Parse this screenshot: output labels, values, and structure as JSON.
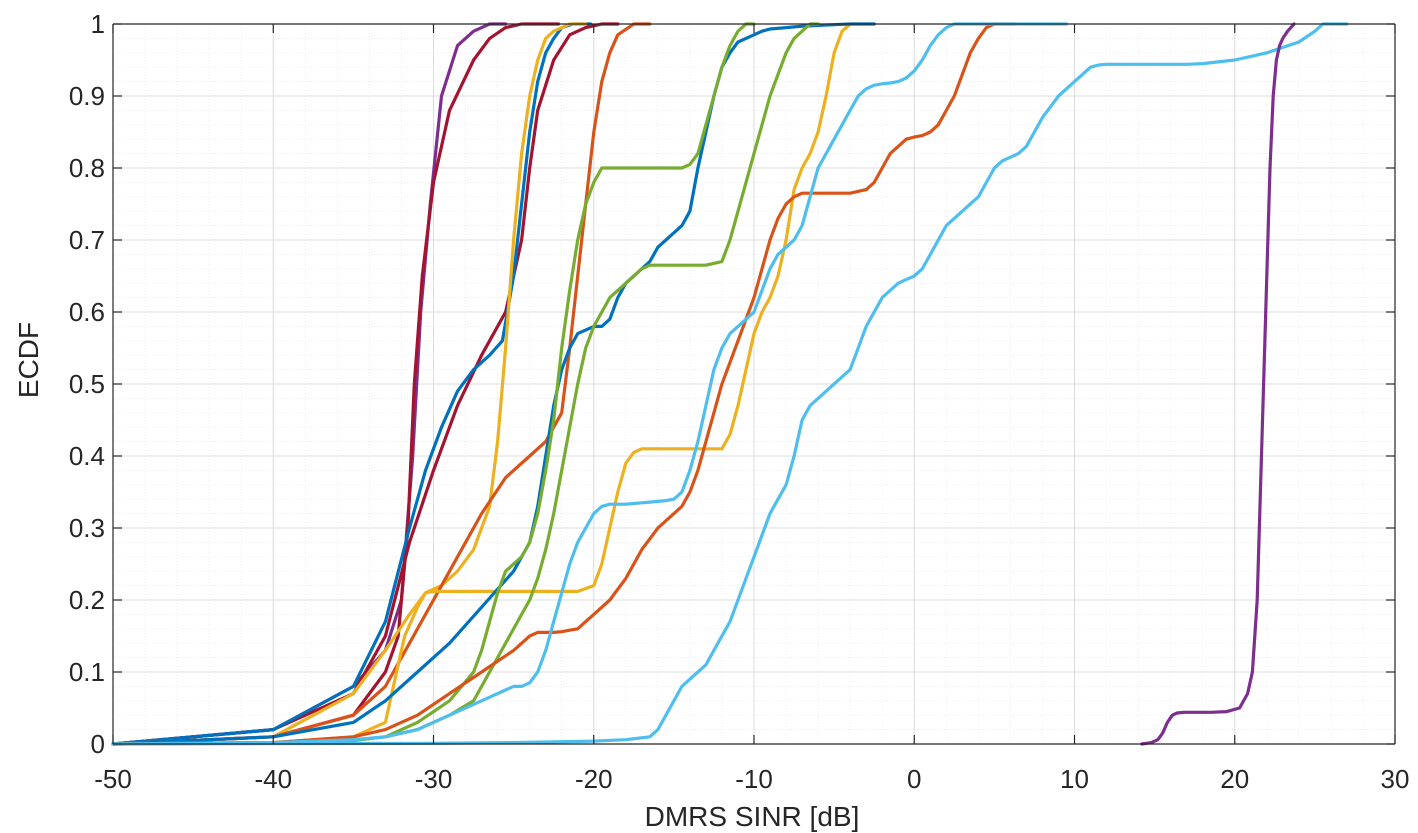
{
  "chart_data": {
    "type": "line",
    "title": "",
    "xlabel": "DMRS SINR [dB]",
    "ylabel": "ECDF",
    "xlim": [
      -50,
      30
    ],
    "ylim": [
      0,
      1
    ],
    "xticks": [
      -50,
      -40,
      -30,
      -20,
      -10,
      0,
      10,
      20,
      30
    ],
    "yticks": [
      0,
      0.1,
      0.2,
      0.3,
      0.4,
      0.5,
      0.6,
      0.7,
      0.8,
      0.9,
      1
    ],
    "xtick_labels": [
      "-50",
      "-40",
      "-30",
      "-20",
      "-10",
      "0",
      "10",
      "20",
      "30"
    ],
    "ytick_labels": [
      "0",
      "0.1",
      "0.2",
      "0.3",
      "0.4",
      "0.5",
      "0.6",
      "0.7",
      "0.8",
      "0.9",
      "1"
    ],
    "grid": true,
    "minor_grid": true,
    "legend": "none",
    "series": [
      {
        "color": "#7E2F8E",
        "x": [
          -50,
          -40,
          -35,
          -33,
          -32,
          -31.3,
          -30.8,
          -30.2,
          -29.5,
          -28.5,
          -27.5,
          -26.5,
          -25.5
        ],
        "y": [
          0,
          0.02,
          0.08,
          0.13,
          0.2,
          0.4,
          0.6,
          0.75,
          0.9,
          0.97,
          0.99,
          1.0,
          1.0
        ]
      },
      {
        "color": "#A2142F",
        "x": [
          -50,
          -40,
          -35,
          -33,
          -32.2,
          -31.6,
          -31.2,
          -30.7,
          -30,
          -29,
          -27.5,
          -26.5,
          -25.5,
          -24.5,
          -23.5,
          -22.2
        ],
        "y": [
          0,
          0.01,
          0.04,
          0.1,
          0.15,
          0.3,
          0.5,
          0.65,
          0.78,
          0.88,
          0.95,
          0.98,
          0.995,
          1.0,
          1.0,
          1.0
        ]
      },
      {
        "color": "#A2142F",
        "x": [
          -50,
          -40,
          -35,
          -33,
          -31.5,
          -30,
          -28.5,
          -27,
          -25.5,
          -24.5,
          -24,
          -23.5,
          -22.5,
          -21.5,
          -20.5,
          -19.5,
          -18.5
        ],
        "y": [
          0,
          0.02,
          0.07,
          0.15,
          0.28,
          0.38,
          0.47,
          0.54,
          0.6,
          0.7,
          0.8,
          0.88,
          0.95,
          0.985,
          0.995,
          1.0,
          1.0
        ]
      },
      {
        "color": "#0072BD",
        "x": [
          -50,
          -40,
          -35,
          -33,
          -31.5,
          -30.5,
          -29.5,
          -28.5,
          -27.5,
          -26.5,
          -25.7,
          -25,
          -24.5,
          -24,
          -23.5,
          -23,
          -22.5,
          -22,
          -21.3,
          -20.2
        ],
        "y": [
          0,
          0.02,
          0.08,
          0.17,
          0.3,
          0.38,
          0.44,
          0.49,
          0.52,
          0.54,
          0.56,
          0.65,
          0.75,
          0.85,
          0.92,
          0.96,
          0.98,
          0.995,
          1.0,
          1.0
        ]
      },
      {
        "color": "#EDB120",
        "x": [
          -50,
          -40,
          -35,
          -33,
          -31.5,
          -30.5,
          -29.5,
          -28.5,
          -27.5,
          -26.5,
          -26,
          -25.5,
          -25,
          -24.5,
          -24,
          -23.5,
          -23,
          -22.5,
          -21.5,
          -20.5
        ],
        "y": [
          0,
          0.01,
          0.07,
          0.13,
          0.18,
          0.21,
          0.22,
          0.24,
          0.27,
          0.33,
          0.42,
          0.55,
          0.7,
          0.82,
          0.9,
          0.95,
          0.98,
          0.99,
          1.0,
          1.0
        ]
      },
      {
        "color": "#D95319",
        "x": [
          -50,
          -40,
          -35,
          -33,
          -31.5,
          -30,
          -28.5,
          -27,
          -25.5,
          -24,
          -23,
          -22,
          -21.5,
          -21,
          -20.5,
          -20,
          -19.5,
          -19,
          -18.5,
          -17.5,
          -16.5
        ],
        "y": [
          0,
          0.01,
          0.04,
          0.08,
          0.14,
          0.2,
          0.26,
          0.32,
          0.37,
          0.4,
          0.42,
          0.46,
          0.55,
          0.65,
          0.75,
          0.85,
          0.92,
          0.96,
          0.985,
          1.0,
          1.0
        ]
      },
      {
        "color": "#EDB120",
        "x": [
          -50,
          -40,
          -35,
          -33,
          -32.5,
          -31.8,
          -31,
          -30.5,
          -30,
          -29,
          -27,
          -25,
          -23,
          -21,
          -20,
          -19.5,
          -19,
          -18.5,
          -18,
          -17.5,
          -17,
          -15,
          -13,
          -12
        ],
        "y": [
          0,
          0.002,
          0.01,
          0.03,
          0.08,
          0.15,
          0.19,
          0.21,
          0.212,
          0.212,
          0.212,
          0.212,
          0.212,
          0.212,
          0.22,
          0.25,
          0.3,
          0.35,
          0.39,
          0.405,
          0.41,
          0.41,
          0.41,
          0.41
        ]
      },
      {
        "color": "#EDB120",
        "x": [
          -12,
          -11.5,
          -11,
          -10.5,
          -10,
          -9.5,
          -9,
          -8.5,
          -8,
          -7.5,
          -7,
          -6.5,
          -6,
          -5.5,
          -5,
          -4.5,
          -4,
          -3.5
        ],
        "y": [
          0.41,
          0.43,
          0.47,
          0.52,
          0.57,
          0.6,
          0.62,
          0.65,
          0.7,
          0.77,
          0.8,
          0.82,
          0.85,
          0.9,
          0.96,
          0.99,
          1.0,
          1.0
        ]
      },
      {
        "color": "#0072BD",
        "x": [
          -50,
          -40,
          -35,
          -33,
          -31,
          -29,
          -27,
          -25,
          -24,
          -23.5,
          -23,
          -22.5,
          -22,
          -21.5,
          -21,
          -20,
          -19.5,
          -19,
          -18.5,
          -18,
          -17.5,
          -17,
          -16.5,
          -16,
          -15.5,
          -15,
          -14.5,
          -14,
          -13.5,
          -13,
          -12.5,
          -12,
          -11.5,
          -11,
          -10.5,
          -10,
          -9.5,
          -9,
          -8,
          -7,
          -6,
          -5,
          -4,
          -3,
          -2.5
        ],
        "y": [
          0,
          0.01,
          0.03,
          0.06,
          0.1,
          0.14,
          0.19,
          0.24,
          0.28,
          0.33,
          0.4,
          0.47,
          0.52,
          0.55,
          0.57,
          0.58,
          0.58,
          0.59,
          0.62,
          0.64,
          0.65,
          0.66,
          0.67,
          0.69,
          0.7,
          0.71,
          0.72,
          0.74,
          0.8,
          0.85,
          0.9,
          0.94,
          0.96,
          0.975,
          0.98,
          0.985,
          0.99,
          0.993,
          0.995,
          0.997,
          0.998,
          0.999,
          1.0,
          1.0,
          1.0
        ]
      },
      {
        "color": "#77AC30",
        "x": [
          -50,
          -40,
          -35,
          -33,
          -31,
          -29,
          -27.5,
          -27,
          -26.5,
          -26,
          -25.5,
          -25,
          -24.5,
          -24,
          -23.5,
          -23,
          -22.5,
          -22,
          -21.5,
          -21,
          -20.5,
          -20,
          -19.5,
          -19,
          -18.5,
          -17.5,
          -16.5,
          -15.5,
          -14.5,
          -14,
          -13.5,
          -13,
          -12.5,
          -12,
          -11.5,
          -11,
          -10.5,
          -10
        ],
        "y": [
          0,
          0.002,
          0.005,
          0.01,
          0.03,
          0.06,
          0.1,
          0.13,
          0.17,
          0.21,
          0.24,
          0.25,
          0.26,
          0.28,
          0.32,
          0.38,
          0.45,
          0.55,
          0.63,
          0.7,
          0.75,
          0.78,
          0.8,
          0.8,
          0.8,
          0.8,
          0.8,
          0.8,
          0.8,
          0.805,
          0.82,
          0.86,
          0.9,
          0.94,
          0.97,
          0.99,
          1.0,
          1.0
        ]
      },
      {
        "color": "#77AC30",
        "x": [
          -50,
          -40,
          -35,
          -33,
          -31,
          -29,
          -27.5,
          -27,
          -26.5,
          -26,
          -25.5,
          -25,
          -24.5,
          -24,
          -23.5,
          -23,
          -22.5,
          -22,
          -21.5,
          -21,
          -20.5,
          -20,
          -19.5,
          -19,
          -18.5,
          -18,
          -17.5,
          -17,
          -16.5,
          -16,
          -15.5,
          -15,
          -14.5,
          -14,
          -13,
          -12,
          -11.5,
          -11,
          -10.5,
          -10,
          -9.5,
          -9,
          -8.5,
          -8,
          -7.5,
          -7,
          -6.5,
          -6
        ],
        "y": [
          0,
          0.002,
          0.005,
          0.01,
          0.02,
          0.04,
          0.06,
          0.08,
          0.1,
          0.12,
          0.14,
          0.16,
          0.18,
          0.2,
          0.23,
          0.27,
          0.32,
          0.38,
          0.44,
          0.5,
          0.55,
          0.58,
          0.6,
          0.62,
          0.63,
          0.64,
          0.65,
          0.66,
          0.665,
          0.665,
          0.665,
          0.665,
          0.665,
          0.665,
          0.665,
          0.67,
          0.7,
          0.74,
          0.78,
          0.82,
          0.86,
          0.9,
          0.93,
          0.96,
          0.98,
          0.99,
          1.0,
          1.0
        ]
      },
      {
        "color": "#D95319",
        "x": [
          -50,
          -40,
          -35,
          -33,
          -31,
          -29,
          -27,
          -25,
          -24,
          -23.5,
          -23,
          -22.5,
          -22,
          -21.5,
          -21,
          -20.5,
          -20,
          -19,
          -18,
          -17,
          -16,
          -15.5,
          -15,
          -14.5,
          -14,
          -13.5,
          -13,
          -12.5,
          -12,
          -11.5,
          -11,
          -10.5,
          -10,
          -9.5,
          -9,
          -8.5,
          -8,
          -7.5,
          -7,
          -6.5,
          -6,
          -5,
          -4,
          -3
        ],
        "y": [
          0,
          0.002,
          0.01,
          0.02,
          0.04,
          0.07,
          0.1,
          0.13,
          0.15,
          0.155,
          0.155,
          0.155,
          0.156,
          0.158,
          0.16,
          0.17,
          0.18,
          0.2,
          0.23,
          0.27,
          0.3,
          0.31,
          0.32,
          0.33,
          0.35,
          0.38,
          0.42,
          0.46,
          0.5,
          0.53,
          0.56,
          0.59,
          0.62,
          0.66,
          0.7,
          0.73,
          0.75,
          0.76,
          0.765,
          0.765,
          0.765,
          0.765,
          0.765,
          0.77
        ]
      },
      {
        "color": "#D95319",
        "x": [
          -3,
          -2.5,
          -2,
          -1.5,
          -1,
          -0.5,
          0,
          0.5,
          1,
          1.5,
          2,
          2.5,
          3,
          3.5,
          4,
          4.5,
          5,
          5.5,
          6.2
        ],
        "y": [
          0.77,
          0.78,
          0.8,
          0.82,
          0.83,
          0.84,
          0.843,
          0.845,
          0.85,
          0.86,
          0.88,
          0.9,
          0.93,
          0.96,
          0.98,
          0.995,
          1.0,
          1.0,
          1.0
        ]
      },
      {
        "color": "#4DBEEE",
        "x": [
          -50,
          -40,
          -35,
          -33,
          -31,
          -29,
          -27,
          -25.5,
          -25,
          -24.5,
          -24,
          -23.5,
          -23,
          -22.5,
          -22,
          -21.5,
          -21,
          -20.5,
          -20,
          -19.5,
          -19,
          -18.5,
          -18,
          -17.5,
          -17,
          -16.5,
          -16,
          -15.5,
          -15,
          -14.5,
          -14,
          -13.5,
          -13,
          -12.5,
          -12,
          -11.5,
          -11,
          -10.5,
          -10,
          -9.5,
          -9,
          -8.5,
          -8,
          -7.5,
          -7,
          -6.5,
          -6,
          -5.5,
          -5,
          -4.5,
          -4,
          -3.5,
          -3,
          -2.5,
          -2,
          -1.5,
          -1,
          -0.5,
          0,
          0.5,
          1,
          1.5,
          2,
          2.5,
          3,
          3.5,
          4,
          4.5,
          5,
          5.5,
          6,
          6.5,
          7,
          7.5,
          8,
          8.5,
          9.5
        ],
        "y": [
          0,
          0.002,
          0.006,
          0.01,
          0.02,
          0.04,
          0.06,
          0.075,
          0.08,
          0.08,
          0.085,
          0.1,
          0.13,
          0.17,
          0.21,
          0.25,
          0.28,
          0.3,
          0.32,
          0.33,
          0.333,
          0.333,
          0.333,
          0.334,
          0.335,
          0.336,
          0.337,
          0.338,
          0.34,
          0.35,
          0.38,
          0.42,
          0.47,
          0.52,
          0.55,
          0.57,
          0.58,
          0.59,
          0.6,
          0.63,
          0.66,
          0.68,
          0.69,
          0.7,
          0.72,
          0.76,
          0.8,
          0.82,
          0.84,
          0.86,
          0.88,
          0.9,
          0.91,
          0.915,
          0.917,
          0.918,
          0.92,
          0.925,
          0.935,
          0.95,
          0.97,
          0.985,
          0.995,
          1.0,
          1.0,
          1.0,
          1.0,
          1.0,
          1.0,
          1.0,
          1.0,
          1.0,
          1.0,
          1.0,
          1.0,
          1.0,
          1.0
        ]
      },
      {
        "color": "#4DBEEE",
        "x": [
          -50,
          -30,
          -25,
          -20,
          -18,
          -16.5,
          -16,
          -15.5,
          -15,
          -14.5,
          -14,
          -13.5,
          -13,
          -12.5,
          -12,
          -11.5,
          -11,
          -10.5,
          -10,
          -9.5,
          -9,
          -8.5,
          -8,
          -7.5,
          -7,
          -6.5,
          -6,
          -5.5,
          -5,
          -4.5,
          -4,
          -3.5,
          -3,
          -2.5,
          -2,
          -1.5,
          -1,
          -0.5,
          0,
          0.5,
          1,
          1.5,
          2,
          2.5,
          3,
          3.5,
          4,
          4.5,
          5,
          5.5,
          6,
          6.5,
          7,
          7.5,
          8,
          8.5,
          9,
          9.5,
          10,
          10.5,
          11,
          11.5,
          12,
          12.5,
          13,
          13.5,
          14,
          14.5,
          15,
          15.5,
          16,
          17,
          18,
          20,
          22,
          24,
          25,
          25.5,
          26,
          26.5,
          27
        ],
        "y": [
          0,
          0.001,
          0.002,
          0.004,
          0.006,
          0.01,
          0.02,
          0.04,
          0.06,
          0.08,
          0.09,
          0.1,
          0.11,
          0.13,
          0.15,
          0.17,
          0.2,
          0.23,
          0.26,
          0.29,
          0.32,
          0.34,
          0.36,
          0.4,
          0.45,
          0.47,
          0.48,
          0.49,
          0.5,
          0.51,
          0.52,
          0.55,
          0.58,
          0.6,
          0.62,
          0.63,
          0.64,
          0.645,
          0.65,
          0.66,
          0.68,
          0.7,
          0.72,
          0.73,
          0.74,
          0.75,
          0.76,
          0.78,
          0.8,
          0.81,
          0.815,
          0.82,
          0.83,
          0.85,
          0.87,
          0.885,
          0.9,
          0.91,
          0.92,
          0.93,
          0.94,
          0.943,
          0.944,
          0.944,
          0.944,
          0.944,
          0.944,
          0.944,
          0.944,
          0.944,
          0.944,
          0.944,
          0.945,
          0.95,
          0.96,
          0.975,
          0.99,
          1.0,
          1.0,
          1.0,
          1.0
        ]
      },
      {
        "color": "#7E2F8E",
        "x": [
          14.2,
          14.8,
          15.2,
          15.5,
          15.8,
          16.1,
          16.4,
          16.8,
          17.5,
          18.5,
          19.5,
          20.3,
          20.8,
          21.1,
          21.4,
          21.6,
          21.8,
          22,
          22.2,
          22.4,
          22.6,
          22.8,
          23,
          23.3,
          23.7
        ],
        "y": [
          0,
          0.002,
          0.006,
          0.015,
          0.03,
          0.04,
          0.043,
          0.044,
          0.044,
          0.044,
          0.045,
          0.05,
          0.07,
          0.1,
          0.2,
          0.35,
          0.5,
          0.65,
          0.8,
          0.9,
          0.95,
          0.97,
          0.98,
          0.99,
          1.0
        ]
      }
    ]
  }
}
